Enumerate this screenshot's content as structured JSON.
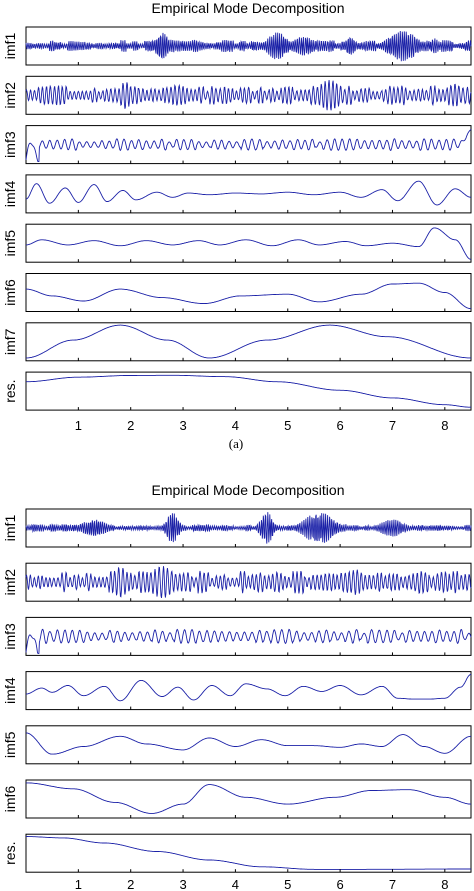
{
  "chart_data": [
    {
      "type": "line",
      "title": "Empirical Mode Decomposition",
      "caption": "(a)",
      "xlim": [
        0,
        8.5
      ],
      "xticks": [
        1,
        2,
        3,
        4,
        5,
        6,
        7,
        8
      ],
      "grid": false,
      "line_color": "#1c22a8",
      "series": [
        {
          "name": "imf1",
          "kind": "noise",
          "amp": 0.25,
          "freq": 26,
          "bursts": [
            [
              2.6,
              0.15,
              0.9
            ],
            [
              4.8,
              0.25,
              0.8
            ],
            [
              5.3,
              0.3,
              0.55
            ],
            [
              6.2,
              0.12,
              0.6
            ],
            [
              7.2,
              0.35,
              0.9
            ],
            [
              7.8,
              0.12,
              0.45
            ]
          ]
        },
        {
          "name": "imf2",
          "kind": "noise",
          "amp": 0.4,
          "freq": 13,
          "bursts": [
            [
              1.9,
              0.15,
              0.8
            ],
            [
              2.9,
              0.3,
              0.6
            ],
            [
              5.8,
              0.3,
              0.9
            ],
            [
              7.2,
              0.1,
              0.6
            ],
            [
              8.2,
              0.15,
              0.7
            ]
          ]
        },
        {
          "name": "imf3",
          "kind": "ripple",
          "amp": 0.25,
          "freq": 7,
          "start_spike": 0.9,
          "end_spike": 0.9
        },
        {
          "name": "imf4",
          "kind": "wave",
          "points": [
            [
              0,
              -0.3
            ],
            [
              0.2,
              0.6
            ],
            [
              0.45,
              -0.55
            ],
            [
              0.75,
              0.35
            ],
            [
              1.0,
              -0.5
            ],
            [
              1.3,
              0.55
            ],
            [
              1.55,
              -0.45
            ],
            [
              1.85,
              0.2
            ],
            [
              2.1,
              -0.35
            ],
            [
              2.5,
              0.1
            ],
            [
              2.8,
              -0.2
            ],
            [
              3.1,
              0.05
            ],
            [
              3.5,
              -0.05
            ],
            [
              4.0,
              0.05
            ],
            [
              4.5,
              0.0
            ],
            [
              5.0,
              0.1
            ],
            [
              5.5,
              -0.05
            ],
            [
              6.0,
              0.1
            ],
            [
              6.4,
              -0.2
            ],
            [
              6.8,
              0.25
            ],
            [
              7.1,
              -0.4
            ],
            [
              7.5,
              0.75
            ],
            [
              7.85,
              -0.65
            ],
            [
              8.2,
              0.3
            ],
            [
              8.5,
              -0.2
            ]
          ]
        },
        {
          "name": "imf5",
          "kind": "wave",
          "points": [
            [
              0,
              -0.1
            ],
            [
              0.3,
              0.2
            ],
            [
              0.8,
              -0.1
            ],
            [
              1.3,
              0.15
            ],
            [
              1.8,
              -0.15
            ],
            [
              2.3,
              0.15
            ],
            [
              2.8,
              -0.1
            ],
            [
              3.3,
              0.15
            ],
            [
              3.7,
              -0.1
            ],
            [
              4.2,
              0.2
            ],
            [
              4.7,
              -0.15
            ],
            [
              5.2,
              0.2
            ],
            [
              5.6,
              -0.1
            ],
            [
              6.1,
              0.1
            ],
            [
              6.5,
              -0.15
            ],
            [
              7.0,
              0.0
            ],
            [
              7.5,
              -0.2
            ],
            [
              7.8,
              0.9
            ],
            [
              8.2,
              0.2
            ],
            [
              8.5,
              -0.95
            ]
          ]
        },
        {
          "name": "imf6",
          "kind": "wave",
          "points": [
            [
              0,
              0.2
            ],
            [
              0.5,
              -0.2
            ],
            [
              1.1,
              -0.5
            ],
            [
              1.8,
              0.2
            ],
            [
              2.6,
              -0.3
            ],
            [
              3.4,
              -0.65
            ],
            [
              4.1,
              -0.2
            ],
            [
              5.0,
              -0.1
            ],
            [
              5.6,
              -0.55
            ],
            [
              6.4,
              -0.1
            ],
            [
              7.0,
              0.5
            ],
            [
              7.5,
              0.55
            ],
            [
              8.0,
              0.0
            ],
            [
              8.5,
              -0.95
            ]
          ]
        },
        {
          "name": "imf7",
          "kind": "wave",
          "points": [
            [
              0,
              -0.95
            ],
            [
              0.9,
              0.1
            ],
            [
              1.8,
              0.98
            ],
            [
              2.7,
              0.1
            ],
            [
              3.5,
              -0.95
            ],
            [
              4.6,
              0.1
            ],
            [
              5.8,
              0.98
            ],
            [
              6.9,
              0.3
            ],
            [
              8.5,
              -0.95
            ]
          ]
        },
        {
          "name": "res.",
          "kind": "wave",
          "points": [
            [
              0,
              0.55
            ],
            [
              1.0,
              0.82
            ],
            [
              2.0,
              0.92
            ],
            [
              2.8,
              0.93
            ],
            [
              3.8,
              0.85
            ],
            [
              4.8,
              0.55
            ],
            [
              6.0,
              0.05
            ],
            [
              7.0,
              -0.4
            ],
            [
              8.0,
              -0.8
            ],
            [
              8.5,
              -0.95
            ]
          ]
        }
      ]
    },
    {
      "type": "line",
      "title": "Empirical Mode Decomposition",
      "xlim": [
        0,
        8.5
      ],
      "xticks": [
        1,
        2,
        3,
        4,
        5,
        6,
        7,
        8
      ],
      "grid": false,
      "line_color": "#1c22a8",
      "series": [
        {
          "name": "imf1",
          "kind": "noise",
          "amp": 0.15,
          "freq": 26,
          "bursts": [
            [
              1.3,
              0.3,
              0.5
            ],
            [
              2.8,
              0.15,
              0.9
            ],
            [
              4.6,
              0.15,
              0.95
            ],
            [
              5.6,
              0.35,
              0.95
            ],
            [
              7.0,
              0.3,
              0.5
            ]
          ]
        },
        {
          "name": "imf2",
          "kind": "noise",
          "amp": 0.45,
          "freq": 13,
          "bursts": [
            [
              1.8,
              0.2,
              0.9
            ],
            [
              2.6,
              0.3,
              0.95
            ],
            [
              4.8,
              0.2,
              0.6
            ],
            [
              6.3,
              0.2,
              0.75
            ],
            [
              8.0,
              0.2,
              0.6
            ]
          ]
        },
        {
          "name": "imf3",
          "kind": "ripple",
          "amp": 0.3,
          "freq": 7,
          "start_spike": 0.95
        },
        {
          "name": "imf4",
          "kind": "wave",
          "points": [
            [
              0,
              -0.2
            ],
            [
              0.3,
              0.15
            ],
            [
              0.5,
              -0.1
            ],
            [
              0.8,
              0.3
            ],
            [
              1.1,
              -0.3
            ],
            [
              1.5,
              0.25
            ],
            [
              1.8,
              -0.6
            ],
            [
              2.2,
              0.6
            ],
            [
              2.6,
              -0.35
            ],
            [
              2.9,
              0.2
            ],
            [
              3.2,
              -0.55
            ],
            [
              3.55,
              0.3
            ],
            [
              3.9,
              -0.3
            ],
            [
              4.2,
              0.4
            ],
            [
              4.6,
              0.1
            ],
            [
              4.95,
              -0.3
            ],
            [
              5.3,
              0.25
            ],
            [
              5.65,
              -0.05
            ],
            [
              6.0,
              0.3
            ],
            [
              6.4,
              -0.25
            ],
            [
              6.8,
              0.25
            ],
            [
              7.1,
              -0.45
            ],
            [
              7.4,
              -0.5
            ],
            [
              7.7,
              -0.5
            ],
            [
              8.0,
              -0.45
            ],
            [
              8.3,
              0.2
            ],
            [
              8.5,
              0.95
            ]
          ]
        },
        {
          "name": "imf5",
          "kind": "wave",
          "points": [
            [
              0,
              0.7
            ],
            [
              0.5,
              -0.55
            ],
            [
              1.1,
              -0.1
            ],
            [
              1.8,
              0.5
            ],
            [
              2.3,
              0.05
            ],
            [
              3.0,
              -0.3
            ],
            [
              3.5,
              0.4
            ],
            [
              4.0,
              -0.1
            ],
            [
              4.5,
              0.3
            ],
            [
              5.0,
              -0.05
            ],
            [
              5.5,
              -0.05
            ],
            [
              6.0,
              -0.15
            ],
            [
              6.4,
              0.05
            ],
            [
              6.8,
              -0.1
            ],
            [
              7.2,
              0.6
            ],
            [
              7.6,
              -0.1
            ],
            [
              8.0,
              -0.5
            ],
            [
              8.5,
              0.5
            ]
          ]
        },
        {
          "name": "imf6",
          "kind": "wave",
          "points": [
            [
              0,
              0.95
            ],
            [
              0.9,
              0.6
            ],
            [
              1.7,
              -0.2
            ],
            [
              2.4,
              -0.85
            ],
            [
              3.0,
              -0.3
            ],
            [
              3.5,
              0.85
            ],
            [
              4.2,
              0.1
            ],
            [
              5.0,
              -0.3
            ],
            [
              5.9,
              0.1
            ],
            [
              6.6,
              0.5
            ],
            [
              7.3,
              0.55
            ],
            [
              8.0,
              0.1
            ],
            [
              8.5,
              -0.3
            ]
          ]
        },
        {
          "name": "res.",
          "kind": "wave",
          "points": [
            [
              0,
              0.98
            ],
            [
              0.7,
              0.9
            ],
            [
              1.5,
              0.6
            ],
            [
              2.5,
              0.1
            ],
            [
              3.5,
              -0.4
            ],
            [
              4.5,
              -0.8
            ],
            [
              5.5,
              -0.95
            ],
            [
              6.5,
              -0.95
            ],
            [
              8.5,
              -0.93
            ]
          ]
        }
      ]
    }
  ]
}
